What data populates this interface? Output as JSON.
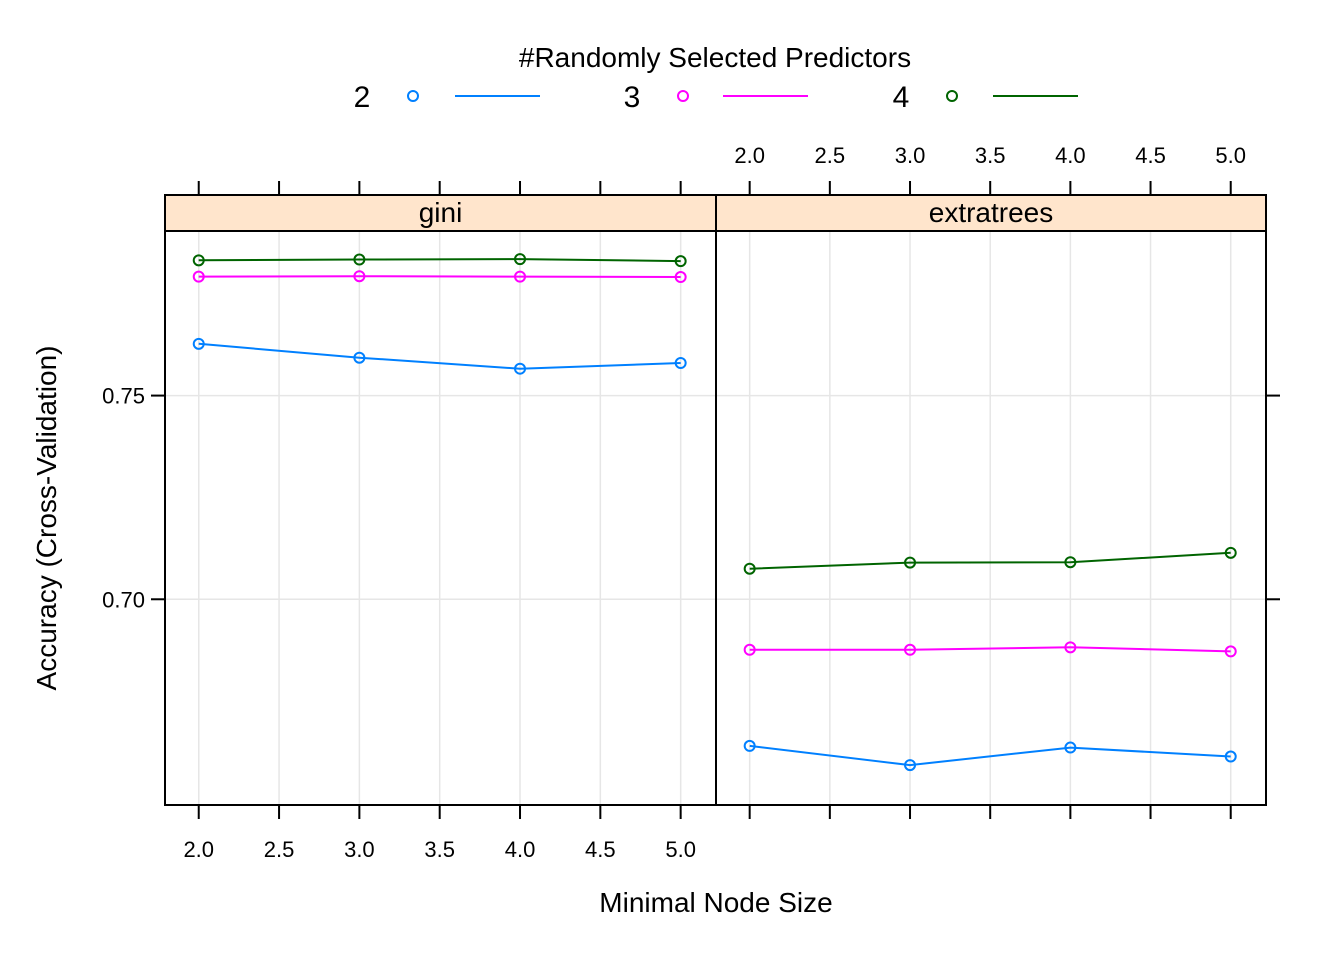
{
  "chart_data": {
    "type": "line",
    "legend": {
      "title": "#Randomly Selected Predictors",
      "placement": "top",
      "entries": [
        {
          "label": "2",
          "color": "#0080ff"
        },
        {
          "label": "3",
          "color": "#ff00ff"
        },
        {
          "label": "4",
          "color": "#006400"
        }
      ]
    },
    "xlabel": "Minimal Node Size",
    "ylabel": "Accuracy (Cross-Validation)",
    "x_ticks": [
      "2.0",
      "2.5",
      "3.0",
      "3.5",
      "4.0",
      "4.5",
      "5.0"
    ],
    "y_ticks": [
      "0.70",
      "0.75"
    ],
    "xlim": [
      1.79,
      5.22
    ],
    "ylim": [
      0.6495,
      0.7904
    ],
    "grid": true,
    "strip_color": "#ffe5cc",
    "panels": [
      {
        "strip": "gini",
        "x": [
          2,
          3,
          4,
          5
        ],
        "series": [
          {
            "name": "2",
            "values": [
              0.7627,
              0.7593,
              0.7566,
              0.758
            ]
          },
          {
            "name": "3",
            "values": [
              0.7792,
              0.7793,
              0.7792,
              0.7791
            ]
          },
          {
            "name": "4",
            "values": [
              0.7832,
              0.7834,
              0.7835,
              0.783
            ]
          }
        ]
      },
      {
        "strip": "extratrees",
        "x": [
          2,
          3,
          4,
          5
        ],
        "series": [
          {
            "name": "2",
            "values": [
              0.664,
              0.6593,
              0.6636,
              0.6614
            ]
          },
          {
            "name": "3",
            "values": [
              0.6876,
              0.6876,
              0.6882,
              0.6872
            ]
          },
          {
            "name": "4",
            "values": [
              0.7075,
              0.709,
              0.7091,
              0.7114
            ]
          }
        ]
      }
    ]
  }
}
